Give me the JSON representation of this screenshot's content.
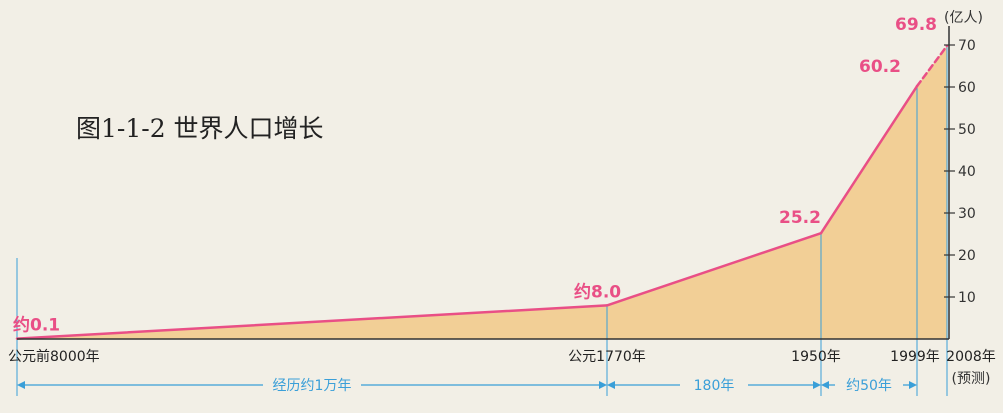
{
  "chart_data": {
    "type": "area",
    "title": "图1-1-2 世界人口增长",
    "unit": "(亿人)",
    "points": [
      {
        "year": -8000,
        "value": 0.1,
        "value_label": "约0.1",
        "x_label": "公元前8000年"
      },
      {
        "year": 1770,
        "value": 8.0,
        "value_label": "约8.0",
        "x_label": "公元1770年"
      },
      {
        "year": 1950,
        "value": 25.2,
        "value_label": "25.2",
        "x_label": "1950年"
      },
      {
        "year": 1999,
        "value": 60.2,
        "value_label": "60.2",
        "x_label": "1999年"
      },
      {
        "year": 2008,
        "value": 69.8,
        "value_label": "69.8",
        "x_label": "2008年",
        "note": "(预测)",
        "projected": true
      }
    ],
    "y_ticks": [
      {
        "value": 10,
        "label": "10"
      },
      {
        "value": 20,
        "label": "20"
      },
      {
        "value": 30,
        "label": "30"
      },
      {
        "value": 40,
        "label": "40"
      },
      {
        "value": 50,
        "label": "50"
      },
      {
        "value": 60,
        "label": "60"
      },
      {
        "value": 70,
        "label": "70"
      }
    ],
    "ylim": [
      0,
      70
    ],
    "y_axis_side": "right",
    "spans": [
      {
        "from": -8000,
        "to": 1770,
        "label": "经历约1万年"
      },
      {
        "from": 1770,
        "to": 1950,
        "label": "180年"
      },
      {
        "from": 1950,
        "to": 1999,
        "label": "约50年"
      }
    ],
    "colors": {
      "line": "#e94f86",
      "fill": "#f2cf96",
      "label": "#e94f86",
      "guide": "#3a9fd8",
      "axis": "#333333",
      "background": "#f2efe6"
    }
  }
}
